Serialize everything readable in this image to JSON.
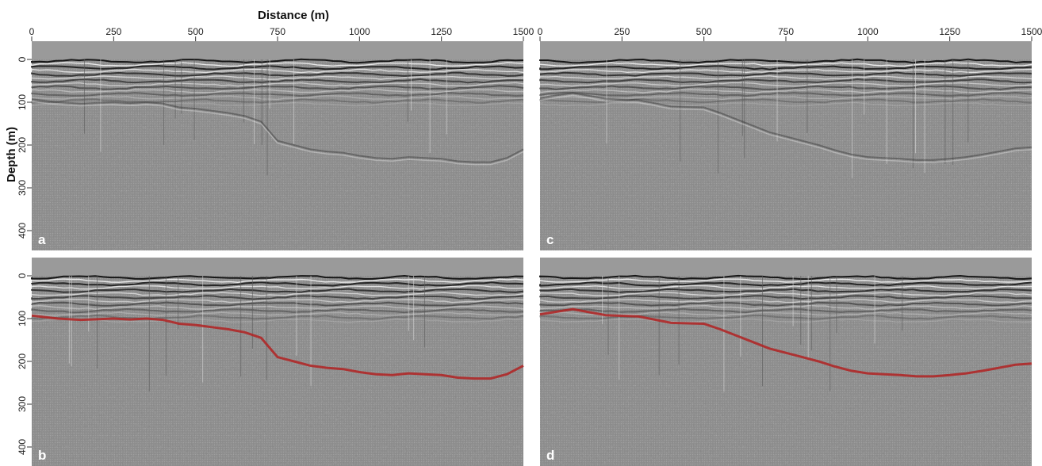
{
  "figure": {
    "xlabel": "Distance (m)",
    "ylabel": "Depth (m)"
  },
  "chart_data": [
    {
      "type": "heatmap",
      "panel": "a",
      "xlabel": "Distance (m)",
      "ylabel": "Depth (m)",
      "xlim": [
        0,
        1500
      ],
      "ylim": [
        450,
        -30
      ],
      "x_ticks": [
        "0",
        "250",
        "500",
        "750",
        "1000",
        "1250",
        "1500"
      ],
      "y_ticks": [
        "0",
        "100",
        "200",
        "300",
        "400"
      ],
      "horizon": null
    },
    {
      "type": "heatmap",
      "panel": "b",
      "xlim": [
        0,
        1500
      ],
      "ylim": [
        450,
        -30
      ],
      "y_ticks": [
        "0",
        "100",
        "200",
        "300",
        "400"
      ],
      "horizon": {
        "color": "#b22222",
        "x": [
          0,
          80,
          150,
          250,
          300,
          350,
          400,
          450,
          500,
          550,
          600,
          650,
          700,
          750,
          800,
          850,
          900,
          950,
          1000,
          1050,
          1100,
          1150,
          1200,
          1250,
          1300,
          1350,
          1400,
          1450,
          1500
        ],
        "y": [
          93,
          100,
          103,
          100,
          102,
          100,
          103,
          112,
          115,
          120,
          125,
          132,
          145,
          190,
          200,
          210,
          215,
          218,
          225,
          230,
          232,
          228,
          230,
          232,
          238,
          240,
          240,
          230,
          210
        ]
      }
    },
    {
      "type": "heatmap",
      "panel": "c",
      "xlabel": "",
      "xlim": [
        0,
        1500
      ],
      "ylim": [
        450,
        -30
      ],
      "x_ticks": [
        "0",
        "250",
        "500",
        "750",
        "1000",
        "1250",
        "1500"
      ],
      "horizon": null
    },
    {
      "type": "heatmap",
      "panel": "d",
      "xlim": [
        0,
        1500
      ],
      "ylim": [
        450,
        -30
      ],
      "horizon": {
        "color": "#b22222",
        "x": [
          0,
          100,
          200,
          300,
          400,
          500,
          550,
          600,
          650,
          700,
          750,
          800,
          850,
          900,
          950,
          1000,
          1050,
          1100,
          1150,
          1200,
          1250,
          1300,
          1350,
          1400,
          1450,
          1500
        ],
        "y": [
          90,
          78,
          92,
          95,
          110,
          112,
          125,
          140,
          155,
          170,
          180,
          190,
          200,
          212,
          222,
          228,
          230,
          232,
          235,
          235,
          232,
          228,
          222,
          215,
          208,
          205
        ]
      }
    }
  ],
  "colors": {
    "seismic_gray": "#8a8a8a",
    "horizon": "#b22222"
  }
}
